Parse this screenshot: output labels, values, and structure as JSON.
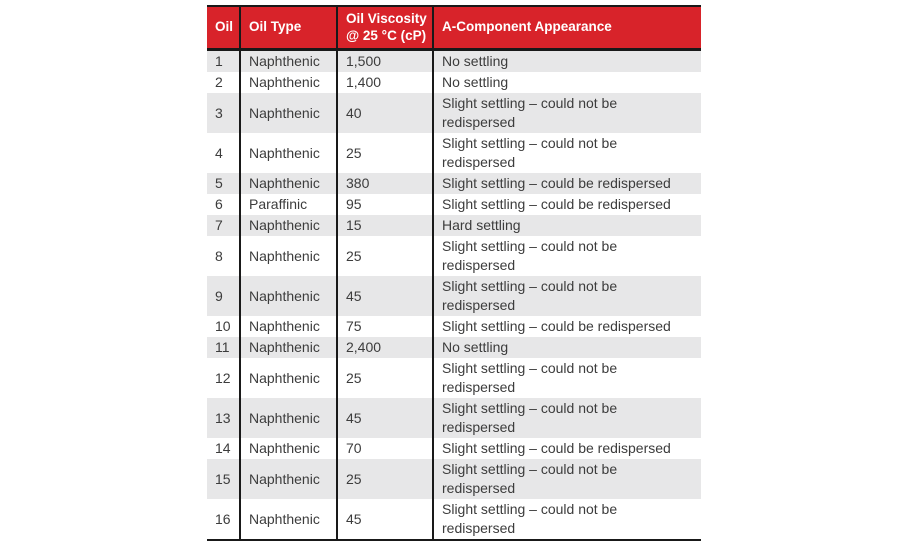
{
  "colors": {
    "header_bg": "#d8232a",
    "header_text": "#ffffff",
    "row_alt_bg": "#e7e7e8",
    "row_bg": "#ffffff",
    "border": "#191919",
    "body_text": "#3c3c3c"
  },
  "table": {
    "headers": [
      "Oil",
      "Oil Type",
      "Oil Viscosity\n@ 25 °C (cP)",
      "A-Component Appearance"
    ],
    "rows": [
      {
        "oil": "1",
        "type": "Naphthenic",
        "viscosity": "1,500",
        "appearance": "No settling"
      },
      {
        "oil": "2",
        "type": "Naphthenic",
        "viscosity": "1,400",
        "appearance": "No settling"
      },
      {
        "oil": "3",
        "type": "Naphthenic",
        "viscosity": "40",
        "appearance": "Slight settling – could not be\nredispersed"
      },
      {
        "oil": "4",
        "type": "Naphthenic",
        "viscosity": "25",
        "appearance": "Slight settling – could not be\nredispersed"
      },
      {
        "oil": "5",
        "type": "Naphthenic",
        "viscosity": "380",
        "appearance": "Slight settling – could be redispersed"
      },
      {
        "oil": "6",
        "type": "Paraffinic",
        "viscosity": "95",
        "appearance": "Slight settling – could be redispersed"
      },
      {
        "oil": "7",
        "type": "Naphthenic",
        "viscosity": "15",
        "appearance": "Hard settling"
      },
      {
        "oil": "8",
        "type": "Naphthenic",
        "viscosity": "25",
        "appearance": "Slight settling – could not be\nredispersed"
      },
      {
        "oil": "9",
        "type": "Naphthenic",
        "viscosity": "45",
        "appearance": "Slight settling – could not be\nredispersed"
      },
      {
        "oil": "10",
        "type": "Naphthenic",
        "viscosity": "75",
        "appearance": "Slight settling – could be redispersed"
      },
      {
        "oil": "11",
        "type": "Naphthenic",
        "viscosity": "2,400",
        "appearance": "No settling"
      },
      {
        "oil": "12",
        "type": "Naphthenic",
        "viscosity": "25",
        "appearance": "Slight settling – could not be\nredispersed"
      },
      {
        "oil": "13",
        "type": "Naphthenic",
        "viscosity": "45",
        "appearance": "Slight settling – could not be\nredispersed"
      },
      {
        "oil": "14",
        "type": "Naphthenic",
        "viscosity": "70",
        "appearance": "Slight settling – could be redispersed"
      },
      {
        "oil": "15",
        "type": "Naphthenic",
        "viscosity": "25",
        "appearance": "Slight settling – could not be\nredispersed"
      },
      {
        "oil": "16",
        "type": "Naphthenic",
        "viscosity": "45",
        "appearance": "Slight settling – could not be\nredispersed"
      }
    ]
  },
  "chart_data": {
    "type": "table",
    "columns": [
      "Oil",
      "Oil Type",
      "Oil Viscosity @ 25 °C (cP)",
      "A-Component Appearance"
    ],
    "rows": [
      [
        1,
        "Naphthenic",
        1500,
        "No settling"
      ],
      [
        2,
        "Naphthenic",
        1400,
        "No settling"
      ],
      [
        3,
        "Naphthenic",
        40,
        "Slight settling – could not be redispersed"
      ],
      [
        4,
        "Naphthenic",
        25,
        "Slight settling – could not be redispersed"
      ],
      [
        5,
        "Naphthenic",
        380,
        "Slight settling – could be redispersed"
      ],
      [
        6,
        "Paraffinic",
        95,
        "Slight settling – could be redispersed"
      ],
      [
        7,
        "Naphthenic",
        15,
        "Hard settling"
      ],
      [
        8,
        "Naphthenic",
        25,
        "Slight settling – could not be redispersed"
      ],
      [
        9,
        "Naphthenic",
        45,
        "Slight settling – could not be redispersed"
      ],
      [
        10,
        "Naphthenic",
        75,
        "Slight settling – could be redispersed"
      ],
      [
        11,
        "Naphthenic",
        2400,
        "No settling"
      ],
      [
        12,
        "Naphthenic",
        25,
        "Slight settling – could not be redispersed"
      ],
      [
        13,
        "Naphthenic",
        45,
        "Slight settling – could not be redispersed"
      ],
      [
        14,
        "Naphthenic",
        70,
        "Slight settling – could be redispersed"
      ],
      [
        15,
        "Naphthenic",
        25,
        "Slight settling – could not be redispersed"
      ],
      [
        16,
        "Naphthenic",
        45,
        "Slight settling – could not be redispersed"
      ]
    ]
  }
}
